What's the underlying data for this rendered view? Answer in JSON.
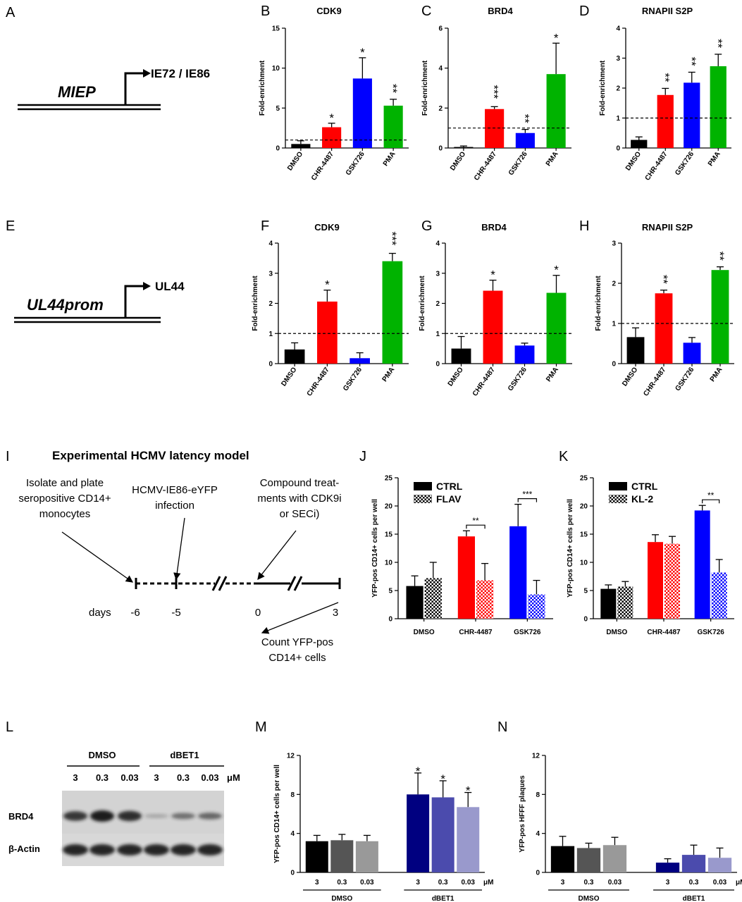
{
  "panel_letters": [
    "A",
    "B",
    "C",
    "D",
    "E",
    "F",
    "G",
    "H",
    "I",
    "J",
    "K",
    "L",
    "M",
    "N"
  ],
  "schematics": {
    "A": {
      "promoter": "MIEP",
      "gene": "IE72 / IE86"
    },
    "E": {
      "promoter": "UL44prom",
      "gene": "UL44"
    }
  },
  "latency": {
    "title": "Experimental HCMV latency model",
    "step1": [
      "Isolate and plate",
      "seropositive CD14+",
      "monocytes"
    ],
    "step2": [
      "HCMV-IE86-eYFP",
      "infection"
    ],
    "step3": [
      "Compound treat-",
      "ments with CDK9i",
      "or SECi)"
    ],
    "step4": [
      "Count YFP-pos",
      "CD14+ cells"
    ],
    "days_label": "days",
    "days": [
      "-6",
      "-5",
      "0",
      "3"
    ]
  },
  "blot": {
    "groups": [
      "DMSO",
      "dBET1"
    ],
    "concentrations": [
      "3",
      "0.3",
      "0.03",
      "3",
      "0.3",
      "0.03"
    ],
    "unit": "μM",
    "rows": [
      "BRD4",
      "β-Actin"
    ],
    "brd4_intensity": [
      0.85,
      1.0,
      0.9,
      0.2,
      0.55,
      0.6
    ]
  },
  "colors": {
    "black": "#000000",
    "red": "#ff0000",
    "blue": "#0000ff",
    "green": "#00b300",
    "navy": "#000080",
    "mid_blue": "#4b4bad",
    "light_blue": "#9999cc",
    "dark_gray": "#333333",
    "mid_gray": "#666666",
    "light_gray": "#999999"
  },
  "chart_data": [
    {
      "id": "B",
      "type": "bar",
      "title": "CDK9",
      "ylabel": "Fold-enrichment",
      "ylim": [
        0,
        15
      ],
      "yticks": [
        "0",
        "5",
        "10",
        "15"
      ],
      "categories": [
        "DMSO",
        "CHR-4487",
        "GSK726",
        "PMA"
      ],
      "values": [
        0.5,
        2.6,
        8.7,
        5.3
      ],
      "errors": [
        0.4,
        0.5,
        2.6,
        0.8
      ],
      "sig": [
        "",
        "*",
        "*",
        "**"
      ],
      "baseline": 1,
      "colors": [
        "#000000",
        "#ff0000",
        "#0000ff",
        "#00b300"
      ]
    },
    {
      "id": "C",
      "type": "bar",
      "title": "BRD4",
      "ylabel": "Fold-enrichment",
      "ylim": [
        0,
        6
      ],
      "yticks": [
        "0",
        "2",
        "4",
        "6"
      ],
      "categories": [
        "DMSO",
        "CHR-4487",
        "GSK726",
        "PMA"
      ],
      "values": [
        0.05,
        1.95,
        0.75,
        3.7
      ],
      "errors": [
        0.05,
        0.12,
        0.18,
        1.55
      ],
      "sig": [
        "",
        "***",
        "**",
        "*"
      ],
      "baseline": 1,
      "colors": [
        "#000000",
        "#ff0000",
        "#0000ff",
        "#00b300"
      ]
    },
    {
      "id": "D",
      "type": "bar",
      "title": "RNAPII S2P",
      "ylabel": "Fold-enrichment",
      "ylim": [
        0,
        4
      ],
      "yticks": [
        "0",
        "1",
        "2",
        "3",
        "4"
      ],
      "categories": [
        "DMSO",
        "CHR-4487",
        "GSK726",
        "PMA"
      ],
      "values": [
        0.27,
        1.77,
        2.18,
        2.73
      ],
      "errors": [
        0.1,
        0.22,
        0.35,
        0.4
      ],
      "sig": [
        "",
        "**",
        "**",
        "**"
      ],
      "baseline": 1,
      "colors": [
        "#000000",
        "#ff0000",
        "#0000ff",
        "#00b300"
      ]
    },
    {
      "id": "F",
      "type": "bar",
      "title": "CDK9",
      "ylabel": "Fold-enrichment",
      "ylim": [
        0,
        4
      ],
      "yticks": [
        "0",
        "1",
        "2",
        "3",
        "4"
      ],
      "categories": [
        "DMSO",
        "CHR-4487",
        "GSK726",
        "PMA"
      ],
      "values": [
        0.47,
        2.06,
        0.18,
        3.4
      ],
      "errors": [
        0.22,
        0.38,
        0.18,
        0.26
      ],
      "sig": [
        "",
        "*",
        "",
        "***"
      ],
      "baseline": 1,
      "colors": [
        "#000000",
        "#ff0000",
        "#0000ff",
        "#00b300"
      ]
    },
    {
      "id": "G",
      "type": "bar",
      "title": "BRD4",
      "ylabel": "Fold-enrichment",
      "ylim": [
        0,
        4
      ],
      "yticks": [
        "0",
        "1",
        "2",
        "3",
        "4"
      ],
      "categories": [
        "DMSO",
        "CHR-4487",
        "GSK726",
        "PMA"
      ],
      "values": [
        0.5,
        2.42,
        0.6,
        2.35
      ],
      "errors": [
        0.4,
        0.35,
        0.08,
        0.58
      ],
      "sig": [
        "",
        "*",
        "",
        "*"
      ],
      "baseline": 1,
      "colors": [
        "#000000",
        "#ff0000",
        "#0000ff",
        "#00b300"
      ]
    },
    {
      "id": "H",
      "type": "bar",
      "title": "RNAPII S2P",
      "ylabel": "Fold-enrichment",
      "ylim": [
        0,
        3
      ],
      "yticks": [
        "0",
        "1",
        "2",
        "3"
      ],
      "categories": [
        "DMSO",
        "CHR-4487",
        "GSK726",
        "PMA"
      ],
      "values": [
        0.66,
        1.75,
        0.52,
        2.33
      ],
      "errors": [
        0.23,
        0.08,
        0.13,
        0.08
      ],
      "sig": [
        "",
        "**",
        "",
        "**"
      ],
      "baseline": 1,
      "colors": [
        "#000000",
        "#ff0000",
        "#0000ff",
        "#00b300"
      ]
    },
    {
      "id": "J",
      "type": "grouped-bar",
      "ylabel": "YFP-pos CD14+ cells per well",
      "ylim": [
        0,
        25
      ],
      "yticks": [
        "0",
        "5",
        "10",
        "15",
        "20",
        "25"
      ],
      "categories": [
        "DMSO",
        "CHR-4487",
        "GSK726"
      ],
      "colors": [
        "#000000",
        "#ff0000",
        "#0000ff"
      ],
      "legend_placement": "top-left",
      "series": [
        {
          "name": "CTRL",
          "pattern": "solid",
          "values": [
            5.8,
            14.6,
            16.4
          ],
          "errors": [
            1.8,
            1.0,
            3.9
          ]
        },
        {
          "name": "FLAV",
          "pattern": "checker",
          "values": [
            7.2,
            6.8,
            4.3
          ],
          "errors": [
            2.8,
            3.0,
            2.5
          ]
        }
      ],
      "brackets": [
        {
          "category": 1,
          "text": "**"
        },
        {
          "category": 2,
          "text": "***"
        }
      ]
    },
    {
      "id": "K",
      "type": "grouped-bar",
      "ylabel": "YFP-pos CD14+ cells per well",
      "ylim": [
        0,
        25
      ],
      "yticks": [
        "0",
        "5",
        "10",
        "15",
        "20",
        "25"
      ],
      "categories": [
        "DMSO",
        "CHR-4487",
        "GSK726"
      ],
      "colors": [
        "#000000",
        "#ff0000",
        "#0000ff"
      ],
      "legend_placement": "top-left",
      "series": [
        {
          "name": "CTRL",
          "pattern": "solid",
          "values": [
            5.3,
            13.6,
            19.2
          ],
          "errors": [
            0.7,
            1.3,
            0.9
          ]
        },
        {
          "name": "KL-2",
          "pattern": "checker",
          "values": [
            5.7,
            13.3,
            8.2
          ],
          "errors": [
            0.9,
            1.3,
            2.3
          ]
        }
      ],
      "brackets": [
        {
          "category": 2,
          "text": "**"
        }
      ]
    },
    {
      "id": "M",
      "type": "bar",
      "ylabel": "YFP-pos CD14+ cells per well",
      "ylim": [
        0,
        12
      ],
      "yticks": [
        "0",
        "4",
        "8",
        "12"
      ],
      "groups": [
        "DMSO",
        "dBET1"
      ],
      "categories": [
        "3",
        "0.3",
        "0.03",
        "3",
        "0.3",
        "0.03"
      ],
      "unit": "μM",
      "values": [
        3.2,
        3.3,
        3.2,
        8.0,
        7.7,
        6.7
      ],
      "errors": [
        0.6,
        0.6,
        0.6,
        2.2,
        1.7,
        1.5
      ],
      "sig": [
        "",
        "",
        "",
        "*",
        "*",
        "*"
      ],
      "colors": [
        "#000000",
        "#555555",
        "#999999",
        "#000080",
        "#4b4bad",
        "#9999cc"
      ]
    },
    {
      "id": "N",
      "type": "bar",
      "ylabel": "YFP-pos HFFF plaques",
      "ylim": [
        0,
        12
      ],
      "yticks": [
        "0",
        "4",
        "8",
        "12"
      ],
      "groups": [
        "DMSO",
        "dBET1"
      ],
      "categories": [
        "3",
        "0.3",
        "0.03",
        "3",
        "0.3",
        "0.03"
      ],
      "unit": "μM",
      "values": [
        2.7,
        2.5,
        2.8,
        1.0,
        1.8,
        1.5
      ],
      "errors": [
        1.0,
        0.5,
        0.8,
        0.4,
        1.0,
        1.0
      ],
      "sig": [
        "",
        "",
        "",
        "",
        "",
        ""
      ],
      "colors": [
        "#000000",
        "#555555",
        "#999999",
        "#000080",
        "#4b4bad",
        "#9999cc"
      ]
    }
  ]
}
